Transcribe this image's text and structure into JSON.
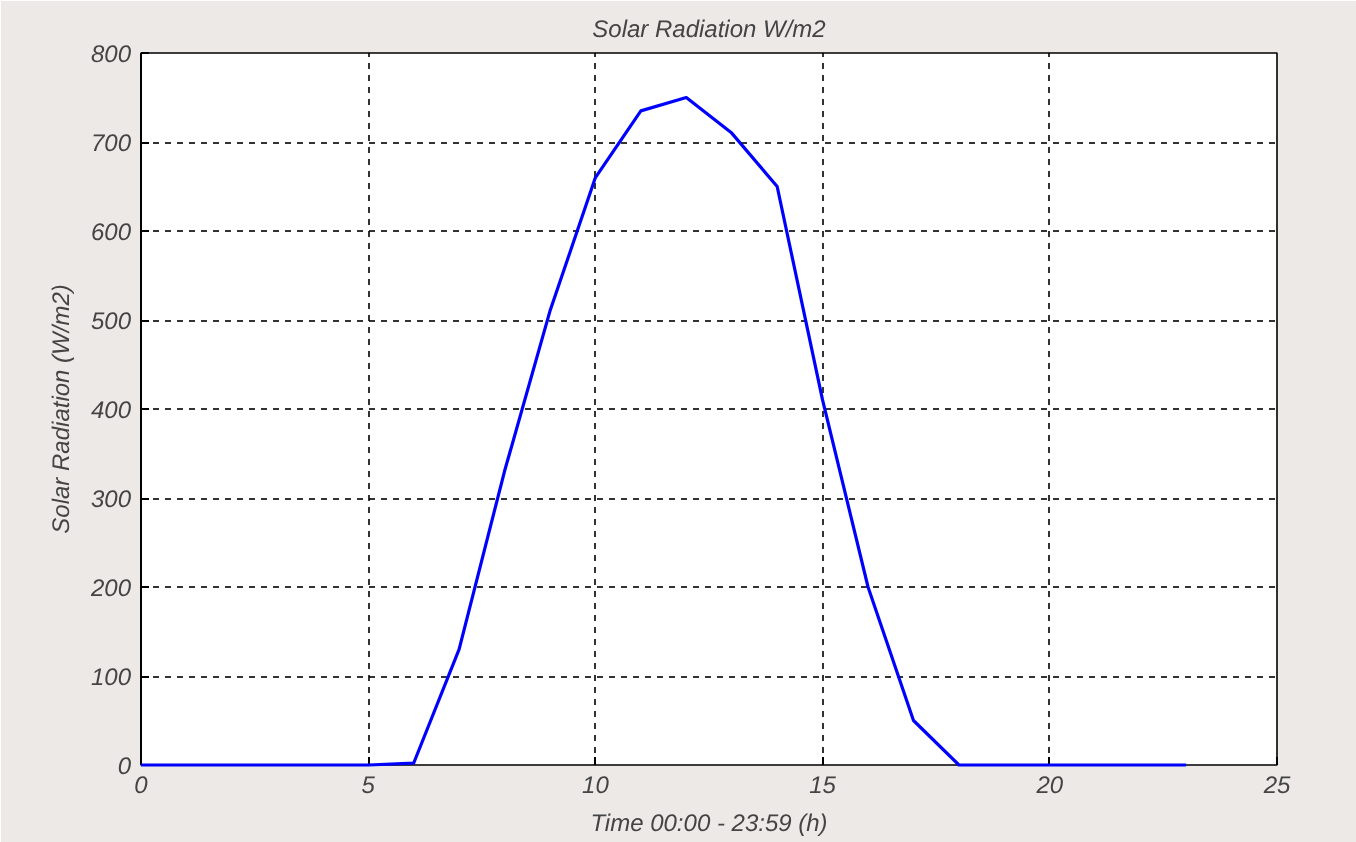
{
  "chart_data": {
    "type": "line",
    "title": "Solar Radiation W/m2",
    "xlabel": "Time 00:00 - 23:59 (h)",
    "ylabel": "Solar Radiation (W/m2)",
    "x": [
      0,
      1,
      2,
      3,
      4,
      5,
      6,
      7,
      8,
      9,
      10,
      11,
      12,
      13,
      14,
      15,
      16,
      17,
      18,
      19,
      20,
      21,
      22,
      23
    ],
    "series": [
      {
        "color": "#0000ff",
        "values": [
          0,
          0,
          0,
          0,
          0,
          0,
          2,
          130,
          330,
          510,
          660,
          735,
          750,
          710,
          650,
          410,
          200,
          50,
          0,
          0,
          0,
          0,
          0,
          0
        ]
      }
    ],
    "xlim": [
      0,
      25
    ],
    "xticks": [
      0,
      5,
      10,
      15,
      20,
      25
    ],
    "ylim": [
      0,
      800
    ],
    "yticks": [
      0,
      100,
      200,
      300,
      400,
      500,
      600,
      700,
      800
    ],
    "grid": true,
    "line_style": "solid"
  }
}
